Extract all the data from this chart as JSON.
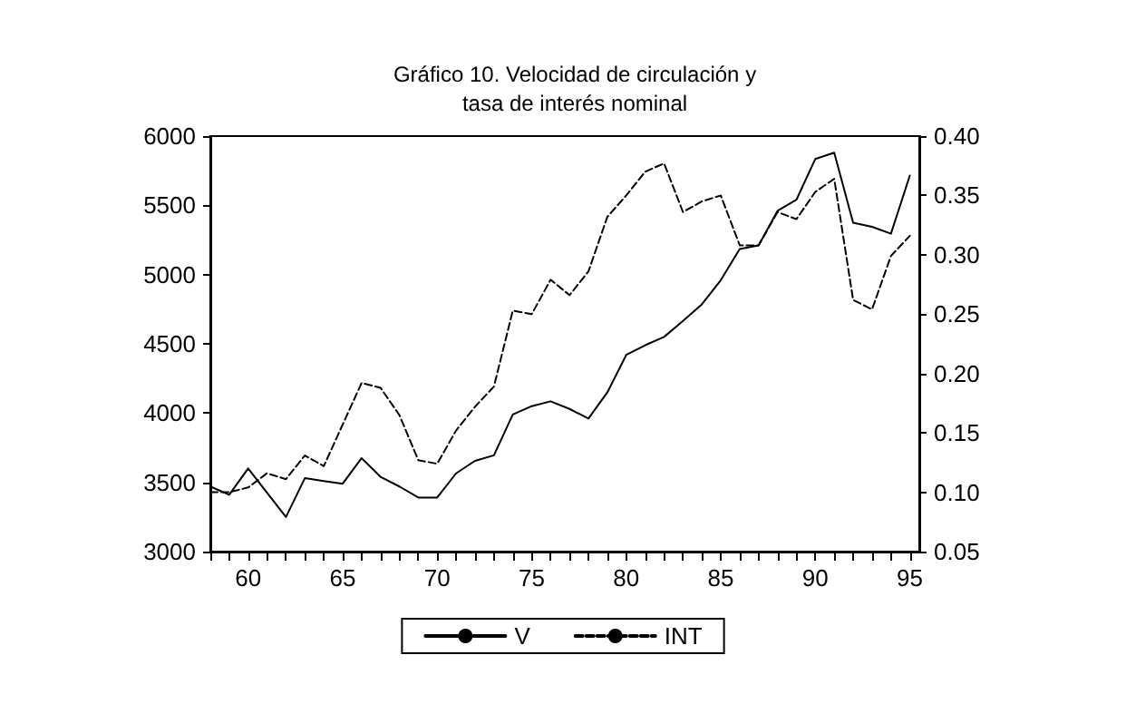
{
  "chart_data": {
    "type": "line",
    "title": "Gráfico 10. Velocidad de circulación y\ntasa de interés nominal",
    "x": [
      58,
      59,
      60,
      61,
      62,
      63,
      64,
      65,
      66,
      67,
      68,
      69,
      70,
      71,
      72,
      73,
      74,
      75,
      76,
      77,
      78,
      79,
      80,
      81,
      82,
      83,
      84,
      85,
      86,
      87,
      88,
      89,
      90,
      91,
      92,
      93,
      94,
      95
    ],
    "series": [
      {
        "name": "V",
        "color": "#000000",
        "line_style": "solid",
        "values": [
          3470,
          3410,
          3600,
          3425,
          3250,
          3530,
          3510,
          3490,
          3675,
          3540,
          3470,
          3390,
          3390,
          3565,
          3655,
          3695,
          3990,
          4050,
          4085,
          4030,
          3960,
          4150,
          4420,
          4490,
          4550,
          4665,
          4785,
          4960,
          5185,
          5210,
          5460,
          5540,
          5835,
          5880,
          5375,
          5345,
          5295,
          5715
        ]
      },
      {
        "name": "INT",
        "color": "#000000",
        "line_style": "dashed",
        "axis": "y2",
        "values": [
          0.1,
          0.1,
          0.104,
          0.116,
          0.111,
          0.131,
          0.122,
          0.157,
          0.192,
          0.188,
          0.165,
          0.127,
          0.124,
          0.152,
          0.172,
          0.189,
          0.253,
          0.25,
          0.279,
          0.266,
          0.286,
          0.332,
          0.35,
          0.37,
          0.377,
          0.336,
          0.345,
          0.35,
          0.308,
          0.308,
          0.336,
          0.33,
          0.353,
          0.364,
          0.262,
          0.254,
          0.299,
          0.316
        ]
      }
    ],
    "xlim": [
      58,
      95.5
    ],
    "xticks": [
      {
        "value": 58,
        "label": null
      },
      {
        "value": 59,
        "label": null
      },
      60,
      {
        "value": 61,
        "label": null
      },
      {
        "value": 62,
        "label": null
      },
      {
        "value": 63,
        "label": null
      },
      {
        "value": 64,
        "label": null
      },
      65,
      {
        "value": 66,
        "label": null
      },
      {
        "value": 67,
        "label": null
      },
      {
        "value": 68,
        "label": null
      },
      {
        "value": 69,
        "label": null
      },
      70,
      {
        "value": 71,
        "label": null
      },
      {
        "value": 72,
        "label": null
      },
      {
        "value": 73,
        "label": null
      },
      {
        "value": 74,
        "label": null
      },
      75,
      {
        "value": 76,
        "label": null
      },
      {
        "value": 77,
        "label": null
      },
      {
        "value": 78,
        "label": null
      },
      {
        "value": 79,
        "label": null
      },
      80,
      {
        "value": 81,
        "label": null
      },
      {
        "value": 82,
        "label": null
      },
      {
        "value": 83,
        "label": null
      },
      {
        "value": 84,
        "label": null
      },
      85,
      {
        "value": 86,
        "label": null
      },
      {
        "value": 87,
        "label": null
      },
      {
        "value": 88,
        "label": null
      },
      {
        "value": 89,
        "label": null
      },
      90,
      {
        "value": 91,
        "label": null
      },
      {
        "value": 92,
        "label": null
      },
      {
        "value": 93,
        "label": null
      },
      {
        "value": 94,
        "label": null
      },
      95
    ],
    "ylim": [
      3000,
      6000
    ],
    "yticks": [
      3000,
      3500,
      4000,
      4500,
      5000,
      5500,
      6000
    ],
    "y2lim": [
      0.05,
      0.4
    ],
    "y2ticks": [
      {
        "value": 0.05,
        "label": "0.05"
      },
      {
        "value": 0.1,
        "label": "0.10"
      },
      {
        "value": 0.15,
        "label": "0.15"
      },
      {
        "value": 0.2,
        "label": "0.20"
      },
      {
        "value": 0.25,
        "label": "0.25"
      },
      {
        "value": 0.3,
        "label": "0.30"
      },
      {
        "value": 0.35,
        "label": "0.35"
      },
      {
        "value": 0.4,
        "label": "0.40"
      }
    ],
    "grid": false,
    "legend": "bottom",
    "marker": "none"
  }
}
